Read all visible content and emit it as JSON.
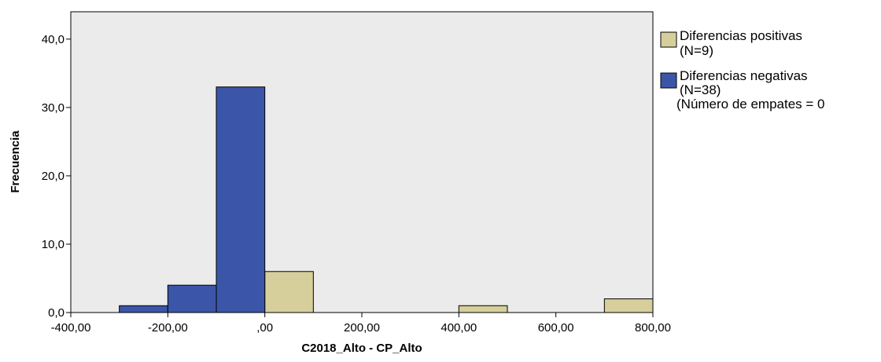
{
  "chart_data": {
    "type": "bar",
    "title": "",
    "xlabel": "C2018_Alto - CP_Alto",
    "ylabel": "Frecuencia",
    "xlim": [
      -400,
      800
    ],
    "ylim": [
      0,
      44
    ],
    "xticks": [
      -400,
      -200,
      0,
      200,
      400,
      600,
      800
    ],
    "xtick_labels": [
      "-400,00",
      "-200,00",
      ",00",
      "200,00",
      "400,00",
      "600,00",
      "800,00"
    ],
    "yticks": [
      0,
      10,
      20,
      30,
      40
    ],
    "ytick_labels": [
      "0,0",
      "10,0",
      "20,0",
      "30,0",
      "40,0"
    ],
    "grid": false,
    "legend_position": "right",
    "series": [
      {
        "name": "Diferencias positivas",
        "name_line2": "(N=9)",
        "color": "#d6cf9c",
        "bins": [
          {
            "x0": 0,
            "x1": 100,
            "value": 6
          },
          {
            "x0": 400,
            "x1": 500,
            "value": 1
          },
          {
            "x0": 700,
            "x1": 800,
            "value": 2
          }
        ]
      },
      {
        "name": "Diferencias negativas",
        "name_line2": "(N=38)",
        "color": "#3b56a8",
        "bins": [
          {
            "x0": -300,
            "x1": -200,
            "value": 1
          },
          {
            "x0": -200,
            "x1": -100,
            "value": 4
          },
          {
            "x0": -100,
            "x1": 0,
            "value": 33
          }
        ]
      }
    ],
    "legend_note": "(Número de empates = 0"
  }
}
